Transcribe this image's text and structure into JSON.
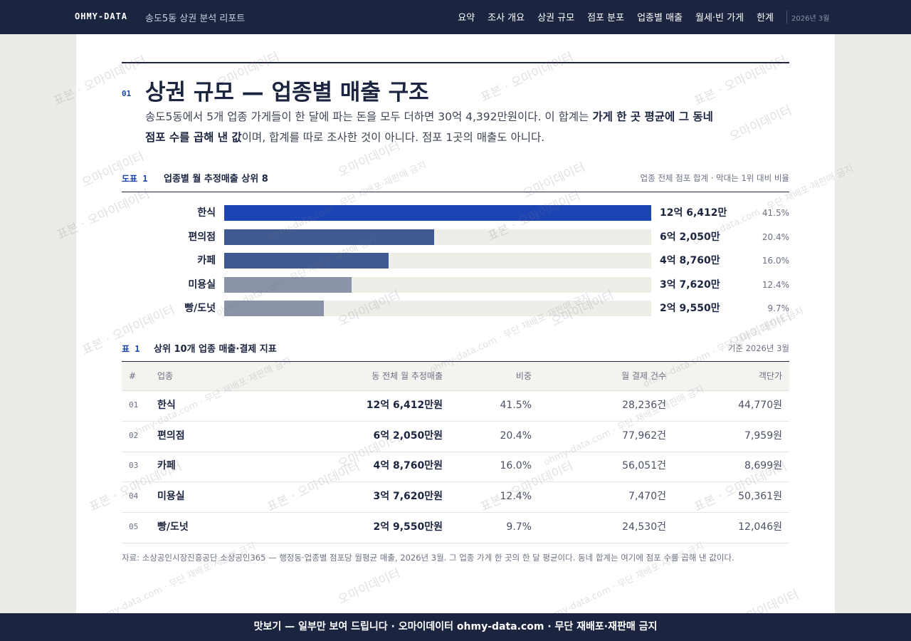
{
  "nav": {
    "brand": "OHMY-DATA",
    "subtitle": "송도5동 상권 분석 리포트",
    "links": [
      "요약",
      "조사 개요",
      "상권 규모",
      "점포 분포",
      "업종별 매출",
      "월세·빈 가게",
      "한계"
    ],
    "date": "2026년 3월"
  },
  "section": {
    "number": "01",
    "title": "상권 규모 — 업종별 매출 구조",
    "lead": [
      {
        "text": "송도5동에서 5개 업종 가게들이 한 달에 파는 돈을 모두 더하면 30억 4,392만원이다. 이 합계는 ",
        "bold": false
      },
      {
        "text": "가게 한 곳 평균에 그 동네 점포 수를 곱해 낸 값",
        "bold": true
      },
      {
        "text": "이며, 합계를 따로 조사한 것이 아니다. 점포 1곳의 매출도 아니다.",
        "bold": false
      }
    ]
  },
  "figure": {
    "label": "도표 1",
    "title": "업종별 월 추정매출 상위 8",
    "note": "업종 전체 점포 합계 · 막대는 1위 대비 비율"
  },
  "chart_data": {
    "type": "bar",
    "orientation": "horizontal",
    "categories": [
      "한식",
      "편의점",
      "카페",
      "미용실",
      "빵/도넛"
    ],
    "values": [
      126412,
      62050,
      48760,
      37620,
      29550
    ],
    "value_labels": [
      "12억 6,412만",
      "6억 2,050만",
      "4억 8,760만",
      "3억 7,620만",
      "2억 9,550만"
    ],
    "shares": [
      41.5,
      20.4,
      16.0,
      12.4,
      9.7
    ],
    "share_labels": [
      "41.5%",
      "20.4%",
      "16.0%",
      "12.4%",
      "9.7%"
    ],
    "colors": [
      "#1c45b3",
      "#3f5a90",
      "#3f5a90",
      "#8a93a8",
      "#8a93a8"
    ],
    "xlim": [
      0,
      126412
    ]
  },
  "table": {
    "label": "표 1",
    "title": "상위 10개 업종 매출·결제 지표",
    "note": "기준 2026년 3월",
    "columns": [
      "#",
      "업종",
      "동 전체 월 추정매출",
      "비중",
      "월 결제 건수",
      "객단가"
    ],
    "rows": [
      [
        "01",
        "한식",
        "12억 6,412만원",
        "41.5%",
        "28,236건",
        "44,770원"
      ],
      [
        "02",
        "편의점",
        "6억 2,050만원",
        "20.4%",
        "77,962건",
        "7,959원"
      ],
      [
        "03",
        "카페",
        "4억 8,760만원",
        "16.0%",
        "56,051건",
        "8,699원"
      ],
      [
        "04",
        "미용실",
        "3억 7,620만원",
        "12.4%",
        "7,470건",
        "50,361원"
      ],
      [
        "05",
        "빵/도넛",
        "2억 9,550만원",
        "9.7%",
        "24,530건",
        "12,046원"
      ]
    ]
  },
  "source": "자료: 소상공인시장진흥공단 소상공인365 — 행정동·업종별 점포당 월평균 매출, 2026년 3월. 그 업종 가게 한 곳의 한 달 평균이다. 동네 합계는 여기에 점포 수를 곱해 낸 값이다.",
  "footer": "맛보기 — 일부만 보여 드립니다 · 오마이데이터 ohmy-data.com · 무단 재배포·재판매 금지",
  "watermarks": [
    "표본 · 오마이데이터",
    "ohmy-data.com · 무단 재배포·재판매 금지",
    "오마이데이터"
  ]
}
